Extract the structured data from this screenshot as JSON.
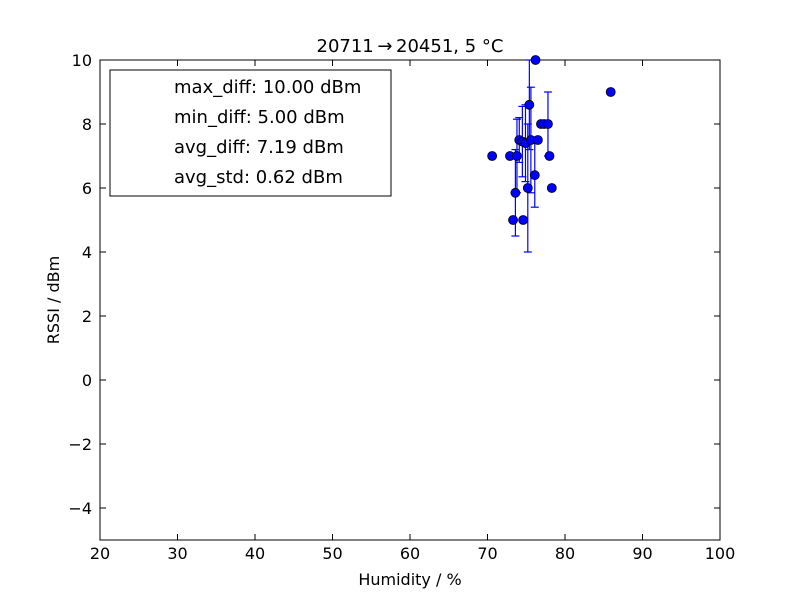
{
  "chart_data": {
    "type": "scatter",
    "title": "20711 → 20451, 5 °C",
    "xlabel": "Humidity / %",
    "ylabel": "RSSI / dBm",
    "xlim": [
      20,
      100
    ],
    "ylim": [
      -5,
      10
    ],
    "x_ticks": [
      "20",
      "30",
      "40",
      "50",
      "60",
      "70",
      "80",
      "90",
      "100"
    ],
    "y_ticks": [
      "−4",
      "−2",
      "0",
      "2",
      "4",
      "6",
      "8",
      "10"
    ],
    "grid": false,
    "marker_color": "#0000ff",
    "legend": {
      "placement": "upper-left",
      "entries": [
        "max_diff: 10.00 dBm",
        "min_diff: 5.00 dBm",
        "avg_diff: 7.19 dBm",
        "avg_std: 0.62 dBm"
      ]
    },
    "points": [
      {
        "x": 70.6,
        "y": 7.0,
        "err": 0
      },
      {
        "x": 72.9,
        "y": 7.0,
        "err": 0
      },
      {
        "x": 73.3,
        "y": 5.0,
        "err": 0
      },
      {
        "x": 73.6,
        "y": 5.85,
        "err": 1.35
      },
      {
        "x": 73.8,
        "y": 7.0,
        "err": 1.15
      },
      {
        "x": 74.1,
        "y": 7.5,
        "err": 0.7
      },
      {
        "x": 74.5,
        "y": 7.45,
        "err": 1.1
      },
      {
        "x": 74.6,
        "y": 5.0,
        "err": 0
      },
      {
        "x": 74.9,
        "y": 7.4,
        "err": 1.2
      },
      {
        "x": 75.2,
        "y": 6.0,
        "err": 2.0
      },
      {
        "x": 75.4,
        "y": 8.6,
        "err": 1.4
      },
      {
        "x": 75.6,
        "y": 7.5,
        "err": 1.65
      },
      {
        "x": 76.1,
        "y": 6.4,
        "err": 1.0
      },
      {
        "x": 76.2,
        "y": 10.0,
        "err": 0
      },
      {
        "x": 76.5,
        "y": 7.5,
        "err": 0
      },
      {
        "x": 76.9,
        "y": 8.0,
        "err": 0
      },
      {
        "x": 77.3,
        "y": 8.0,
        "err": 0
      },
      {
        "x": 77.8,
        "y": 8.0,
        "err": 1.0
      },
      {
        "x": 78.0,
        "y": 7.0,
        "err": 0
      },
      {
        "x": 78.3,
        "y": 6.0,
        "err": 0
      },
      {
        "x": 85.9,
        "y": 9.0,
        "err": 0
      }
    ]
  }
}
